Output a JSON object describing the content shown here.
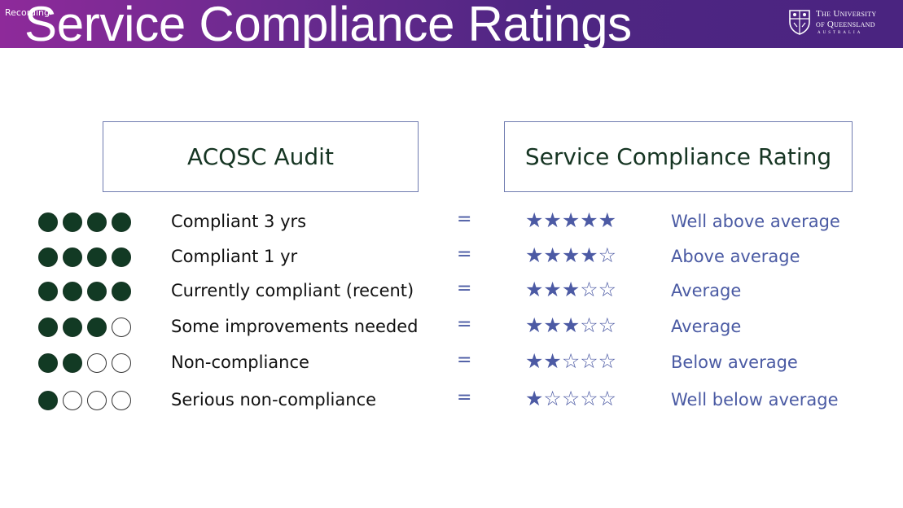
{
  "recording_label": "Recording",
  "slide_title": "Service Compliance Ratings",
  "logo": {
    "line1": "The University",
    "line2": "of Queensland",
    "line3": "AUSTRALIA"
  },
  "headers": {
    "audit": "ACQSC Audit",
    "rating": "Service Compliance Rating"
  },
  "equals_sign": "=",
  "colors": {
    "banner_purple": "#51247a",
    "dot_green": "#123a24",
    "star_blue": "#4c5aa4",
    "header_text": "#163523"
  },
  "rows": [
    {
      "audit": "Compliant 3 yrs",
      "dots": "4 of 4 filled",
      "stars": "★★★★★",
      "rating": "Well above average"
    },
    {
      "audit": "Compliant 1 yr",
      "dots": "4 of 4 filled",
      "stars": "★★★★☆",
      "rating": "Above average"
    },
    {
      "audit": "Currently compliant (recent)",
      "dots": "4 of 4 filled",
      "stars": "★★★☆☆",
      "rating": "Average"
    },
    {
      "audit": "Some improvements needed",
      "dots": "3 of 4 filled",
      "stars": "★★★☆☆",
      "rating": "Average"
    },
    {
      "audit": "Non-compliance",
      "dots": "2 of 4 filled",
      "stars": "★★☆☆☆",
      "rating": "Below average"
    },
    {
      "audit": "Serious non-compliance",
      "dots": "1 of 4 filled",
      "stars": "★☆☆☆☆",
      "rating": "Well below average"
    }
  ]
}
